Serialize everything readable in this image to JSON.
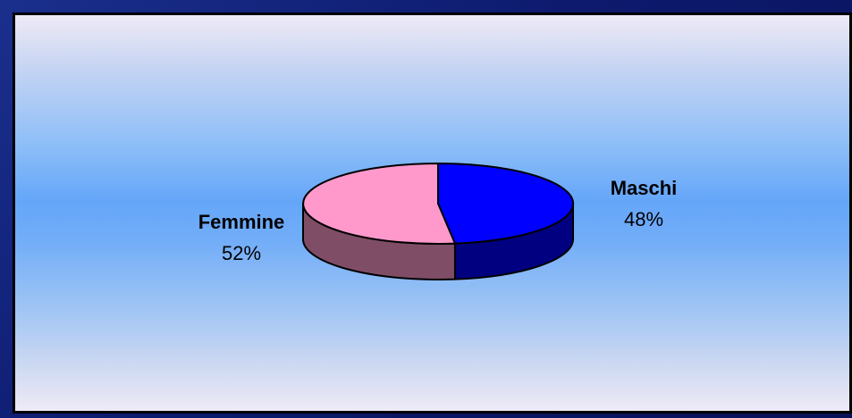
{
  "chart_data": {
    "type": "pie",
    "style": "3d",
    "slices": [
      {
        "label": "Maschi",
        "value": 48,
        "value_label": "48%",
        "color": "#0000ff",
        "side_color": "#000080"
      },
      {
        "label": "Femmine",
        "value": 52,
        "value_label": "52%",
        "color": "#ff99cc",
        "side_color": "#804d66"
      }
    ],
    "background_gradient": [
      "#eeeaf6",
      "#65a6f9",
      "#efeaf6"
    ]
  }
}
